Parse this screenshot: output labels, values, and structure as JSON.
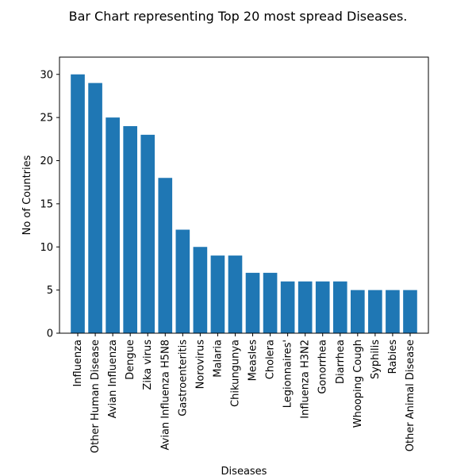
{
  "chart_data": {
    "type": "bar",
    "title": "Bar Chart representing Top 20 most spread Diseases.",
    "xlabel": "Diseases",
    "ylabel": "No of Countries",
    "ylim": [
      0,
      32
    ],
    "yticks": [
      0,
      5,
      10,
      15,
      20,
      25,
      30
    ],
    "grid": false,
    "bar_color": "#1f77b4",
    "categories": [
      "Influenza",
      "Other Human Disease",
      "Avian Influenza",
      "Dengue",
      "Zika virus",
      "Avian Influenza H5N8",
      "Gastroenteritis",
      "Norovirus",
      "Malaria",
      "Chikungunya",
      "Measles",
      "Cholera",
      "Legionnaires'",
      "Influenza H3N2",
      "Gonorrhea",
      "Diarrhea",
      "Whooping Cough",
      "Syphilis",
      "Rabies",
      "Other Animal Disease"
    ],
    "values": [
      30,
      29,
      25,
      24,
      23,
      18,
      12,
      10,
      9,
      9,
      7,
      7,
      6,
      6,
      6,
      6,
      5,
      5,
      5,
      5
    ]
  }
}
